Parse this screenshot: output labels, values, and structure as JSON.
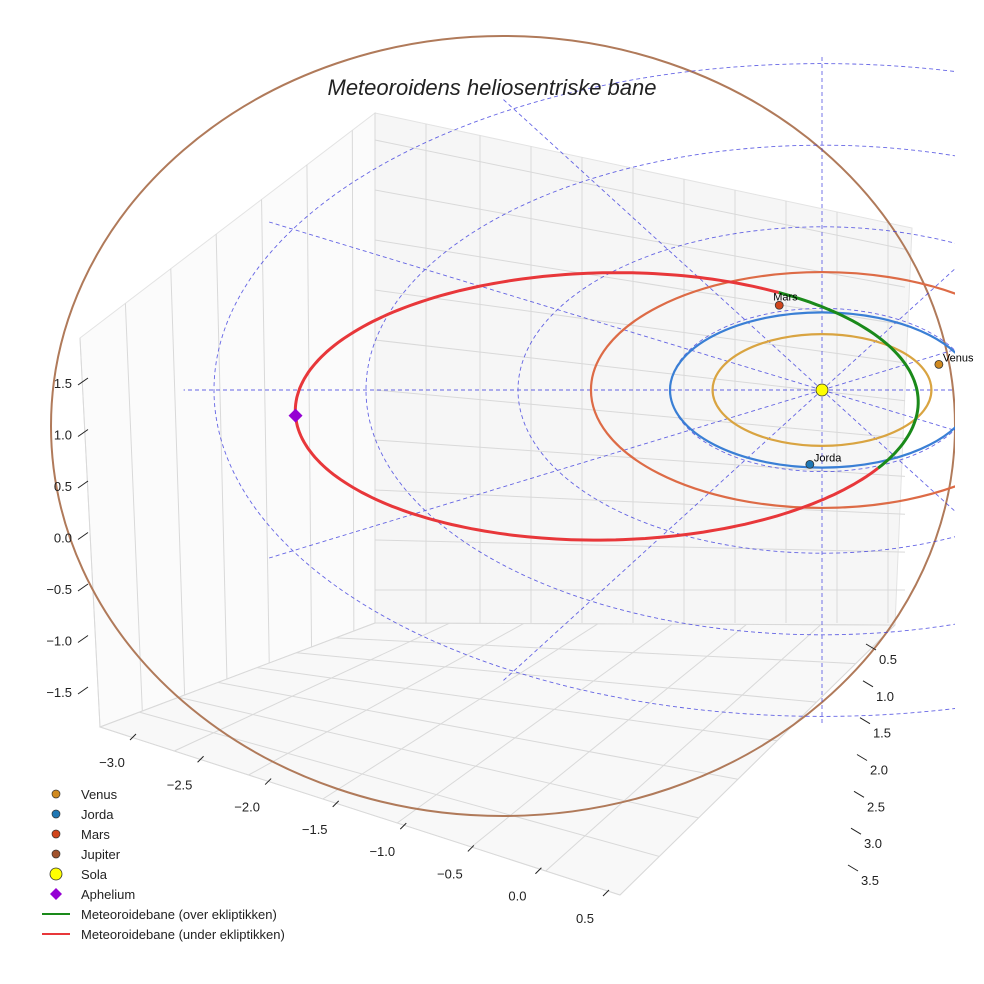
{
  "chart_data": {
    "type": "scatter3d",
    "title": "Meteoroidens heliosentriske bane",
    "axes": {
      "x": {
        "range": [
          -3.2,
          0.6
        ],
        "ticks": [
          "−3.0",
          "−2.5",
          "−2.0",
          "−1.5",
          "−1.0",
          "−0.5",
          "0.0",
          "0.5"
        ]
      },
      "y": {
        "range": [
          0.3,
          3.7
        ],
        "ticks": [
          "0.5",
          "1.0",
          "1.5",
          "2.0",
          "2.5",
          "3.0",
          "3.5"
        ]
      },
      "z": {
        "range": [
          -1.9,
          1.9
        ],
        "ticks": [
          "−1.5",
          "−1.0",
          "−0.5",
          "0.0",
          "0.5",
          "1.0",
          "1.5"
        ]
      }
    },
    "planets": [
      {
        "name": "Venus",
        "label": "Venus",
        "orbit_radius_au": 0.72,
        "color": "#d08a20",
        "orbit_color": "#d9a441"
      },
      {
        "name": "Jorda",
        "label": "Jorda",
        "orbit_radius_au": 1.0,
        "color": "#1f77b4",
        "orbit_color": "#3a7fd5"
      },
      {
        "name": "Mars",
        "label": "Mars",
        "orbit_radius_au": 1.52,
        "color": "#d0451b",
        "orbit_color": "#dd6b46"
      },
      {
        "name": "Jupiter",
        "label": "",
        "orbit_radius_au": 5.2,
        "color": "#a0522d",
        "orbit_color": "#b07a5a"
      }
    ],
    "sun": {
      "name": "Sola",
      "color": "#ffff00"
    },
    "aphelion": {
      "name": "Aphelium",
      "color": "#9400d3"
    },
    "meteoroid_orbit": {
      "perihelion_au": 0.62,
      "aphelion_au": 3.4,
      "series": [
        {
          "name": "Meteoroidebane (over ekliptikken)",
          "color": "#1a8a1a"
        },
        {
          "name": "Meteoroidebane (under ekliptikken)",
          "color": "#e8373a"
        }
      ]
    },
    "ecliptic_grid": {
      "rings_au": [
        1,
        2,
        3,
        4
      ],
      "spokes": 12,
      "color": "#3333dd"
    },
    "legend": {
      "position": "bottom-left",
      "entries": [
        {
          "label": "Venus",
          "marker": "dot",
          "color": "#d08a20"
        },
        {
          "label": "Jorda",
          "marker": "dot",
          "color": "#1f77b4"
        },
        {
          "label": "Mars",
          "marker": "dot",
          "color": "#d0451b"
        },
        {
          "label": "Jupiter",
          "marker": "dot",
          "color": "#a0522d"
        },
        {
          "label": "Sola",
          "marker": "bigdot",
          "color": "#ffff00"
        },
        {
          "label": "Aphelium",
          "marker": "diamond",
          "color": "#9400d3"
        },
        {
          "label": "Meteoroidebane (over ekliptikken)",
          "marker": "line",
          "color": "#1a8a1a"
        },
        {
          "label": "Meteoroidebane (under ekliptikken)",
          "marker": "line",
          "color": "#e8373a"
        }
      ]
    }
  }
}
